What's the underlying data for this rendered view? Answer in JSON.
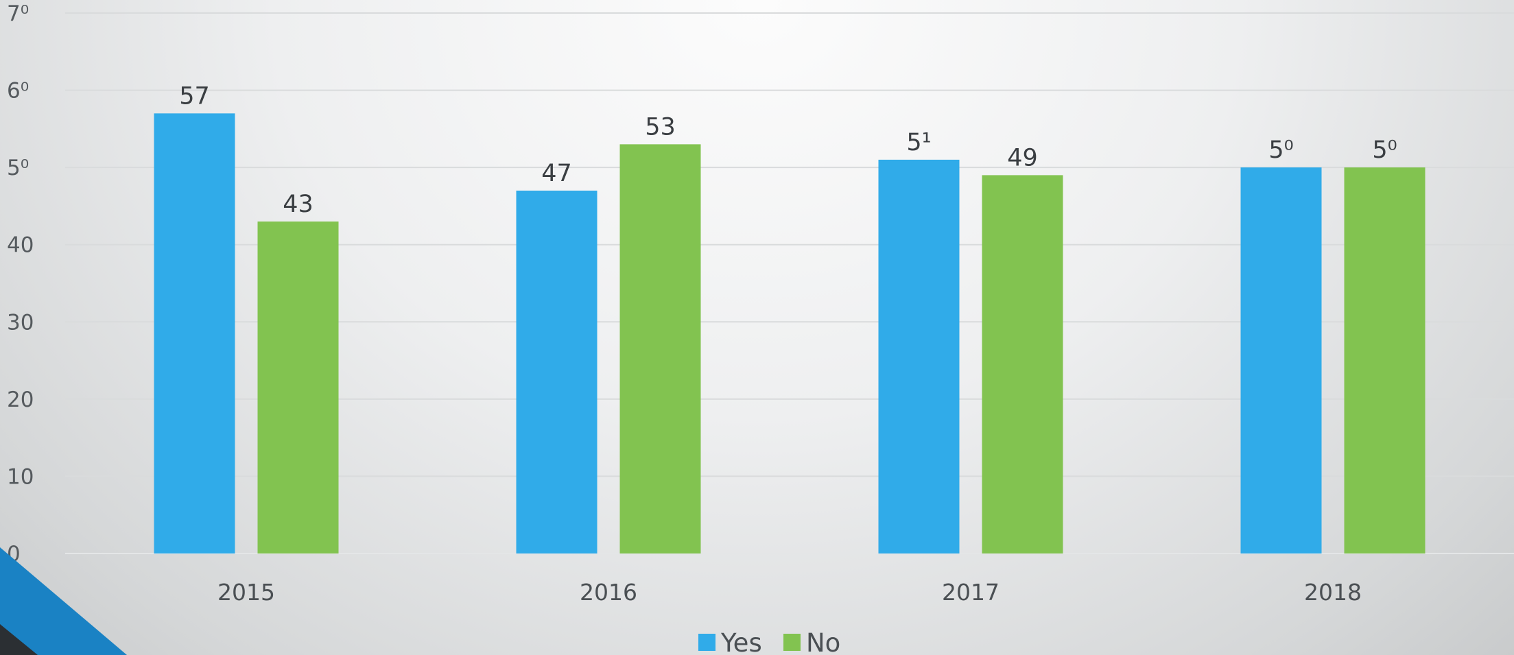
{
  "chart_data": {
    "type": "bar",
    "categories": [
      "2015",
      "2016",
      "2017",
      "2018"
    ],
    "series": [
      {
        "name": "Yes",
        "values": [
          57,
          47,
          51,
          50
        ],
        "color": "#30abe9"
      },
      {
        "name": "No",
        "values": [
          43,
          53,
          49,
          50
        ],
        "color": "#82c350"
      }
    ],
    "value_labels": [
      [
        "57",
        "47",
        "5¹",
        "5⁰"
      ],
      [
        "43",
        "53",
        "49",
        "5⁰"
      ]
    ],
    "ylim": [
      0,
      70
    ],
    "yticks": [
      0,
      10,
      20,
      30,
      40,
      50,
      60,
      70
    ],
    "ytick_labels": [
      "0",
      "10",
      "20",
      "30",
      "40",
      "5⁰",
      "6⁰",
      "7⁰"
    ],
    "grid": true,
    "legend": "bottom-center",
    "decoration_colors": {
      "accent_blue": "#1a82c4",
      "accent_dark": "#2b2f33"
    }
  }
}
